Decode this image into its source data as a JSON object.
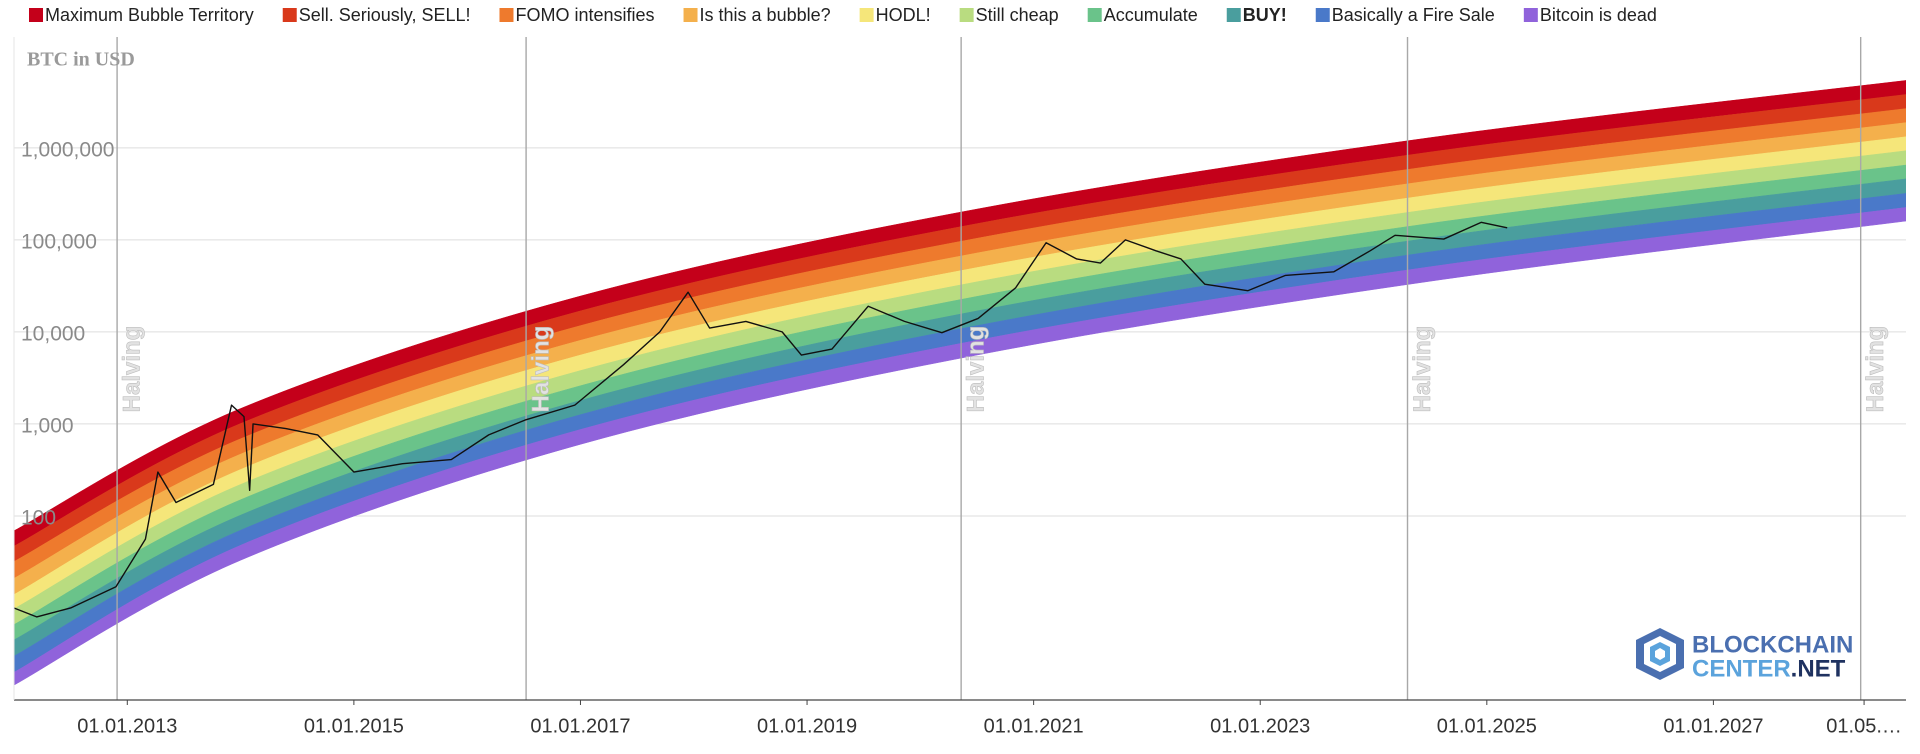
{
  "chart_data": {
    "type": "rainbow",
    "y_label": "BTC in USD",
    "log_scale": true,
    "grid": true,
    "xlim": [
      2012.0,
      2028.7
    ],
    "ylim": [
      1,
      16000000
    ],
    "xticks": [
      {
        "value": 2013,
        "label": "01.01.2013"
      },
      {
        "value": 2015,
        "label": "01.01.2015"
      },
      {
        "value": 2017,
        "label": "01.01.2017"
      },
      {
        "value": 2019,
        "label": "01.01.2019"
      },
      {
        "value": 2021,
        "label": "01.01.2021"
      },
      {
        "value": 2023,
        "label": "01.01.2023"
      },
      {
        "value": 2025,
        "label": "01.01.2025"
      },
      {
        "value": 2027,
        "label": "01.01.2027"
      },
      {
        "value": 2028.33,
        "label": "01.05.…"
      }
    ],
    "yticks": [
      100,
      {
        "value": 1000,
        "label": "1,000"
      },
      {
        "value": 10000,
        "label": "10,000"
      },
      {
        "value": 100000,
        "label": "100,000"
      },
      {
        "value": 1000000,
        "label": "1,000,000"
      }
    ],
    "x": [
      2012.0,
      2014,
      2017,
      2020.5,
      2024.5,
      2028.7
    ],
    "bands": [
      {
        "name": "Maximum Bubble Territory",
        "color": "#c4001a",
        "high": [
          69,
          1470,
          24500,
          216000,
          1290000,
          5400000
        ],
        "low": [
          47,
          1010,
          16900,
          150000,
          900000,
          3800000
        ]
      },
      {
        "name": "Sell. Seriously, SELL!",
        "color": "#d9391b",
        "high": [
          47,
          1010,
          16900,
          150000,
          900000,
          3800000
        ],
        "low": [
          32,
          690,
          11700,
          104000,
          630000,
          2670000
        ]
      },
      {
        "name": "FOMO intensifies",
        "color": "#ee7a2d",
        "high": [
          32,
          690,
          11700,
          104000,
          630000,
          2670000
        ],
        "low": [
          21,
          470,
          8100,
          72000,
          440000,
          1880000
        ]
      },
      {
        "name": "Is this a bubble?",
        "color": "#f4b04c",
        "high": [
          21,
          470,
          8100,
          72000,
          440000,
          1880000
        ],
        "low": [
          14,
          320,
          5600,
          50000,
          308000,
          1320000
        ]
      },
      {
        "name": "HODL!",
        "color": "#f5e67a",
        "high": [
          14,
          320,
          5600,
          50000,
          308000,
          1320000
        ],
        "low": [
          9.8,
          220,
          3800,
          35000,
          215000,
          930000
        ]
      },
      {
        "name": "Still cheap",
        "color": "#b9dc80",
        "high": [
          9.8,
          220,
          3800,
          35000,
          215000,
          930000
        ],
        "low": [
          6.6,
          150,
          2600,
          24300,
          151000,
          650000
        ]
      },
      {
        "name": "Accumulate",
        "color": "#6ac38a",
        "high": [
          6.6,
          150,
          2600,
          24300,
          151000,
          650000
        ],
        "low": [
          4.5,
          102,
          1800,
          16900,
          105000,
          460000
        ]
      },
      {
        "name": "BUY!",
        "color": "#4a9e9e",
        "bold": true,
        "high": [
          4.5,
          102,
          1800,
          16900,
          105000,
          460000
        ],
        "low": [
          3.0,
          70,
          1260,
          11700,
          74000,
          320000
        ]
      },
      {
        "name": "Basically a Fire Sale",
        "color": "#4a79c9",
        "high": [
          3.0,
          70,
          1260,
          11700,
          74000,
          320000
        ],
        "low": [
          2.0,
          48,
          870,
          8100,
          51000,
          225000
        ]
      },
      {
        "name": "Bitcoin is dead",
        "color": "#9063db",
        "high": [
          2.0,
          48,
          870,
          8100,
          51000,
          225000
        ],
        "low": [
          1.45,
          33,
          600,
          5600,
          35500,
          160000
        ]
      }
    ],
    "price": {
      "color": "#111111",
      "x": [
        2012.0,
        2012.2,
        2012.5,
        2012.9,
        2013.16,
        2013.27,
        2013.43,
        2013.76,
        2013.92,
        2014.03,
        2014.08,
        2014.11,
        2014.4,
        2014.68,
        2015.0,
        2015.43,
        2015.86,
        2016.19,
        2016.51,
        2016.95,
        2017.38,
        2017.7,
        2017.95,
        2018.14,
        2018.46,
        2018.78,
        2018.95,
        2019.22,
        2019.54,
        2019.86,
        2020.19,
        2020.51,
        2020.84,
        2021.11,
        2021.38,
        2021.59,
        2021.81,
        2022.08,
        2022.3,
        2022.51,
        2022.89,
        2023.22,
        2023.65,
        2023.97,
        2024.19,
        2024.62,
        2024.95,
        2025.18
      ],
      "values": [
        10,
        8,
        10,
        17,
        56,
        300,
        140,
        220,
        1600,
        1200,
        190,
        1000,
        890,
        760,
        300,
        370,
        410,
        760,
        1100,
        1600,
        4400,
        10000,
        27000,
        11000,
        13000,
        10000,
        5600,
        6500,
        19000,
        13000,
        9800,
        14000,
        30000,
        93000,
        62000,
        56000,
        100000,
        76000,
        62000,
        33000,
        28000,
        41000,
        45000,
        76000,
        112000,
        102000,
        155000,
        135000
      ]
    },
    "annotations": [
      {
        "x": 2012.91,
        "text": "Halving"
      },
      {
        "x": 2016.52,
        "text": "Halving"
      },
      {
        "x": 2020.36,
        "text": "Halving"
      },
      {
        "x": 2024.3,
        "text": "Halving"
      },
      {
        "x": 2028.3,
        "text": "Halving"
      }
    ],
    "logo": {
      "line1": "BLOCKCHAIN",
      "line2": "CENTER",
      "line2_suffix": ".NET"
    }
  }
}
